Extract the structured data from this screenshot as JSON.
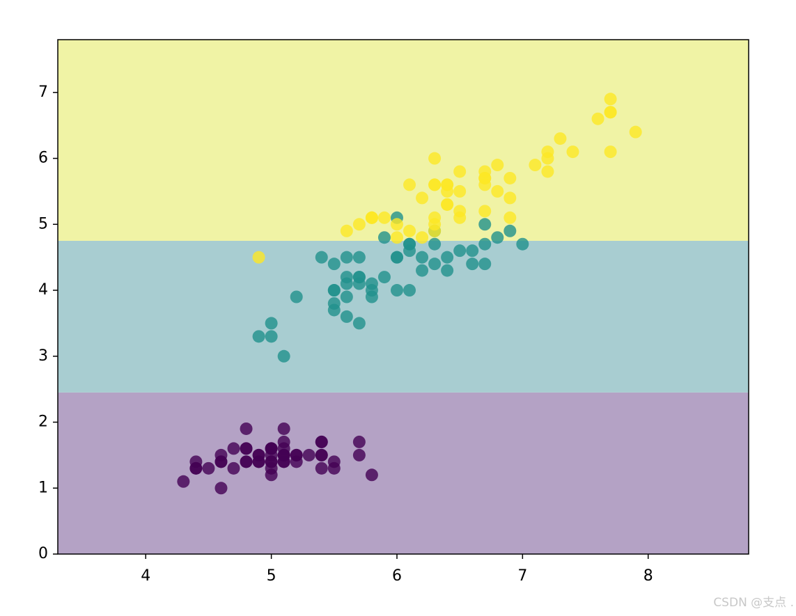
{
  "chart_data": {
    "type": "scatter",
    "xlim": [
      3.3,
      8.8
    ],
    "ylim": [
      0,
      7.8
    ],
    "xticks": [
      4,
      5,
      6,
      7,
      8
    ],
    "yticks": [
      0,
      1,
      2,
      3,
      4,
      5,
      6,
      7
    ],
    "regions": [
      {
        "from": 0,
        "to": 2.45,
        "color": "#b4a2c5"
      },
      {
        "from": 2.45,
        "to": 4.75,
        "color": "#a8cdd1"
      },
      {
        "from": 4.75,
        "to": 7.8,
        "color": "#f0f3a5"
      }
    ],
    "series": [
      {
        "color": "#440154",
        "x": [
          5.1,
          4.9,
          4.7,
          4.6,
          5.0,
          5.4,
          4.6,
          5.0,
          4.4,
          4.9,
          5.4,
          4.8,
          4.8,
          4.3,
          5.8,
          5.7,
          5.4,
          5.1,
          5.7,
          5.1,
          5.4,
          5.1,
          4.6,
          5.1,
          4.8,
          5.0,
          5.0,
          5.2,
          5.2,
          4.7,
          4.8,
          5.4,
          5.2,
          5.5,
          4.9,
          5.0,
          5.5,
          4.9,
          4.4,
          5.1,
          5.0,
          4.5,
          4.4,
          5.0,
          5.1,
          4.8,
          5.1,
          4.6,
          5.3,
          5.0
        ],
        "values": [
          1.4,
          1.4,
          1.3,
          1.5,
          1.4,
          1.7,
          1.4,
          1.5,
          1.4,
          1.5,
          1.5,
          1.6,
          1.4,
          1.1,
          1.2,
          1.5,
          1.3,
          1.4,
          1.7,
          1.5,
          1.7,
          1.5,
          1.0,
          1.7,
          1.9,
          1.6,
          1.6,
          1.5,
          1.4,
          1.6,
          1.6,
          1.5,
          1.5,
          1.4,
          1.5,
          1.2,
          1.3,
          1.4,
          1.3,
          1.5,
          1.3,
          1.3,
          1.3,
          1.6,
          1.9,
          1.4,
          1.6,
          1.4,
          1.5,
          1.4
        ]
      },
      {
        "color": "#21918c",
        "x": [
          7.0,
          6.4,
          6.9,
          5.5,
          6.5,
          5.7,
          6.3,
          4.9,
          6.6,
          5.2,
          5.0,
          5.9,
          6.0,
          6.1,
          5.6,
          6.7,
          5.6,
          5.8,
          6.2,
          5.6,
          5.9,
          6.1,
          6.3,
          6.1,
          6.4,
          6.6,
          6.8,
          6.7,
          6.0,
          5.7,
          5.5,
          5.5,
          5.8,
          6.0,
          5.4,
          6.0,
          6.7,
          6.3,
          5.6,
          5.5,
          5.5,
          6.1,
          5.8,
          5.0,
          5.6,
          5.7,
          5.7,
          6.2,
          5.1,
          5.7
        ],
        "values": [
          4.7,
          4.5,
          4.9,
          4.0,
          4.6,
          4.5,
          4.7,
          3.3,
          4.6,
          3.9,
          3.5,
          4.2,
          4.0,
          4.7,
          3.6,
          4.4,
          4.5,
          4.1,
          4.5,
          3.9,
          4.8,
          4.0,
          4.9,
          4.7,
          4.3,
          4.4,
          4.8,
          5.0,
          4.5,
          3.5,
          3.8,
          3.7,
          3.9,
          5.1,
          4.5,
          4.5,
          4.7,
          4.4,
          4.1,
          4.0,
          4.4,
          4.6,
          4.0,
          3.3,
          4.2,
          4.2,
          4.2,
          4.3,
          3.0,
          4.1
        ]
      },
      {
        "color": "#fde725",
        "x": [
          6.3,
          5.8,
          7.1,
          6.3,
          6.5,
          7.6,
          4.9,
          7.3,
          6.7,
          7.2,
          6.5,
          6.4,
          6.8,
          5.7,
          5.8,
          6.4,
          6.5,
          7.7,
          7.7,
          6.0,
          6.9,
          5.6,
          7.7,
          6.3,
          6.7,
          7.2,
          6.2,
          6.1,
          6.4,
          7.2,
          7.4,
          7.9,
          6.4,
          6.3,
          6.1,
          7.7,
          6.3,
          6.4,
          6.0,
          6.9,
          6.7,
          6.9,
          5.8,
          6.8,
          6.7,
          6.7,
          6.3,
          6.5,
          6.2,
          5.9
        ],
        "values": [
          6.0,
          5.1,
          5.9,
          5.6,
          5.8,
          6.6,
          4.5,
          6.3,
          5.8,
          6.1,
          5.1,
          5.3,
          5.5,
          5.0,
          5.1,
          5.3,
          5.5,
          6.7,
          6.9,
          5.0,
          5.7,
          4.9,
          6.7,
          4.9,
          5.7,
          6.0,
          4.8,
          4.9,
          5.6,
          5.8,
          6.1,
          6.4,
          5.6,
          5.1,
          5.6,
          6.1,
          5.6,
          5.5,
          4.8,
          5.4,
          5.6,
          5.1,
          5.1,
          5.9,
          5.7,
          5.2,
          5.0,
          5.2,
          5.4,
          5.1
        ]
      }
    ],
    "watermark": "CSDN @支点 ."
  }
}
